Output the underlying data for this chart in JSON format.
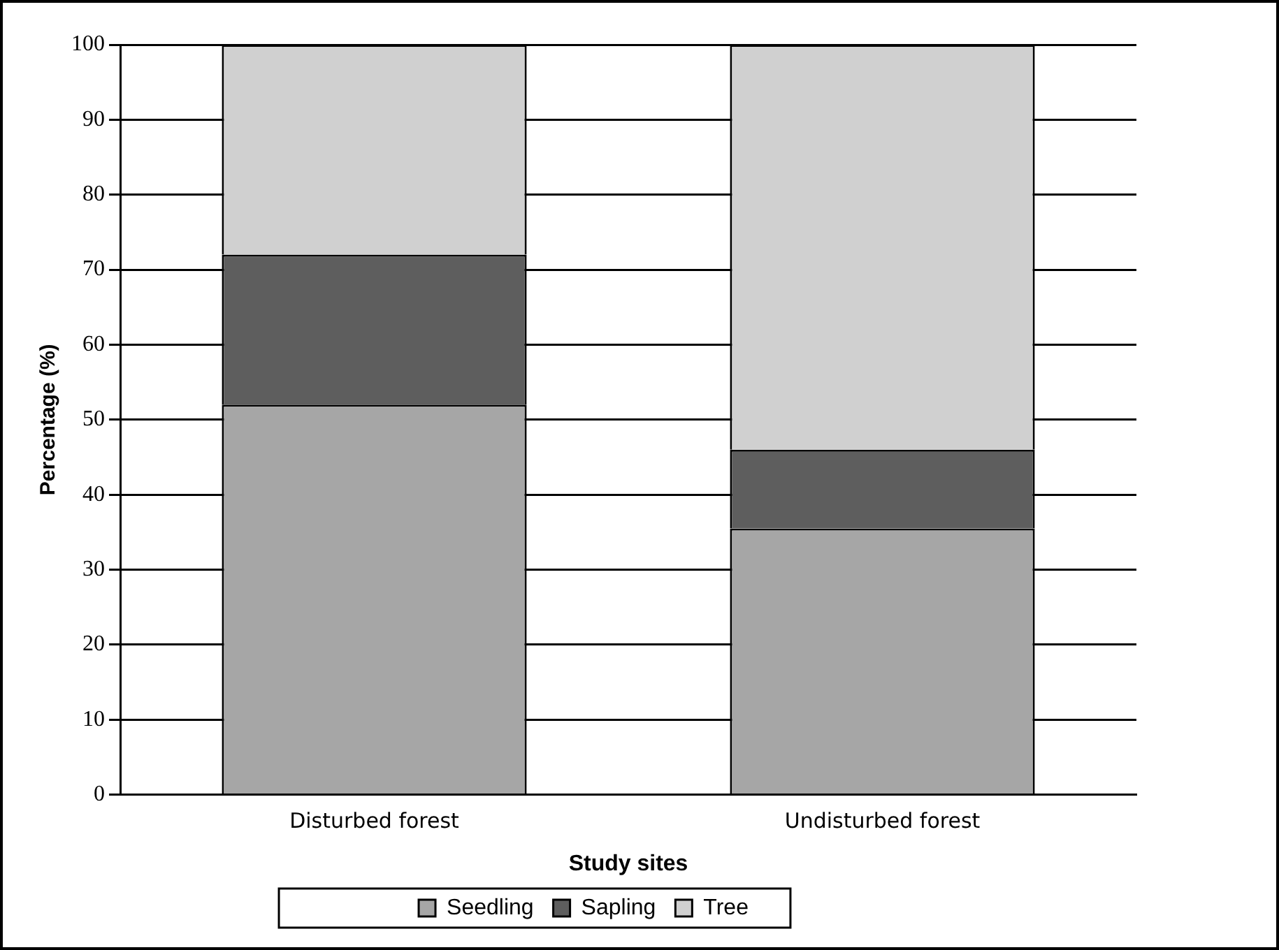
{
  "chart_data": {
    "type": "bar",
    "stacked": true,
    "xlabel": "Study sites",
    "ylabel": "Percentage (%)",
    "categories": [
      "Disturbed forest",
      "Undisturbed forest"
    ],
    "series": [
      {
        "name": "Seedling",
        "color": "#a6a6a6",
        "values": [
          52,
          35.5
        ]
      },
      {
        "name": "Sapling",
        "color": "#5e5e5e",
        "values": [
          20,
          10.5
        ]
      },
      {
        "name": "Tree",
        "color": "#d0d0d0",
        "values": [
          28,
          54
        ]
      }
    ],
    "ylim": [
      0,
      100
    ],
    "yticks": [
      0,
      10,
      20,
      30,
      40,
      50,
      60,
      70,
      80,
      90,
      100
    ],
    "grid": "y",
    "legend": "bottom"
  }
}
